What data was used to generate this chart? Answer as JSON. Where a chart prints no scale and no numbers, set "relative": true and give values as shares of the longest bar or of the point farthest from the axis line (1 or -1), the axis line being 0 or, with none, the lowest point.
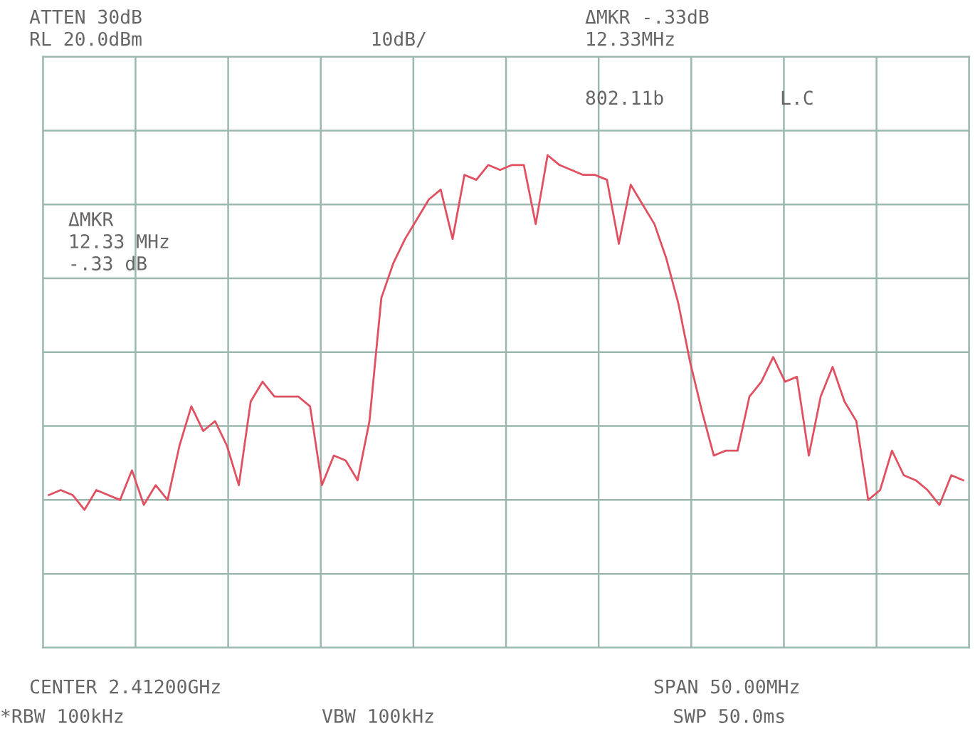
{
  "chart_data": {
    "type": "line",
    "relative": true,
    "grid": true,
    "legend": false,
    "marker": "none",
    "line_style": "solid",
    "annotations": [
      "ATTEN 30dB",
      "RL 20.0dBm",
      "10dB/",
      "ΔMKR -.33dB",
      "12.33MHz",
      "802.11b",
      "L.C",
      "ΔMKR",
      "12.33 MHz",
      "-.33 dB",
      "CENTER 2.41200GHz",
      "SPAN 50.00MHz",
      "*RBW 100kHz",
      "VBW 100kHz",
      "SWP 50.0ms"
    ],
    "categories": [
      null,
      null,
      null,
      null,
      null,
      null,
      null,
      null,
      null,
      null,
      null,
      null,
      null,
      null,
      null,
      null,
      null,
      null,
      null,
      null,
      null,
      null,
      null,
      null,
      null,
      null,
      null,
      null,
      null,
      null,
      null,
      null,
      null,
      null,
      null,
      null,
      null,
      null,
      null,
      null,
      null,
      null,
      null,
      null,
      null,
      null,
      null,
      null,
      null,
      null,
      null,
      null,
      null,
      null,
      null,
      null,
      null,
      null,
      null,
      null,
      null,
      null,
      null,
      null,
      null,
      null,
      null,
      null,
      null,
      null,
      null,
      null,
      null,
      null,
      null,
      null,
      null,
      null
    ],
    "series": [
      {
        "color": "#e05060",
        "values": [
          0.31,
          0.32,
          0.31,
          0.28,
          0.32,
          0.31,
          0.3,
          0.36,
          0.29,
          0.33,
          0.3,
          0.41,
          0.49,
          0.44,
          0.46,
          0.41,
          0.33,
          0.5,
          0.54,
          0.51,
          0.51,
          0.51,
          0.49,
          0.33,
          0.39,
          0.38,
          0.34,
          0.46,
          0.71,
          0.78,
          0.83,
          0.87,
          0.91,
          0.93,
          0.83,
          0.96,
          0.95,
          0.98,
          0.97,
          0.98,
          0.98,
          0.86,
          1,
          0.98,
          0.97,
          0.96,
          0.96,
          0.95,
          0.82,
          0.94,
          0.9,
          0.86,
          0.79,
          0.7,
          0.58,
          0.48,
          0.39,
          0.4,
          0.4,
          0.51,
          0.54,
          0.59,
          0.54,
          0.55,
          0.39,
          0.51,
          0.57,
          0.5,
          0.46,
          0.3,
          0.32,
          0.4,
          0.35,
          0.34,
          0.32,
          0.29,
          0.35,
          0.34
        ]
      }
    ]
  }
}
